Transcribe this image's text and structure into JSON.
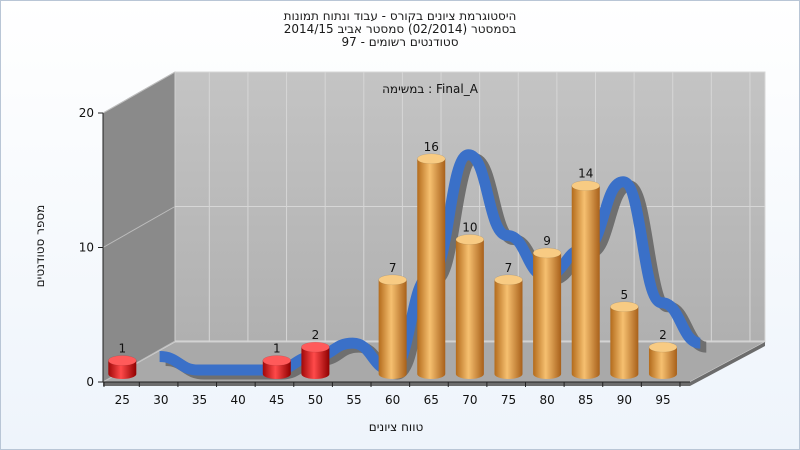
{
  "chart_data": {
    "type": "bar",
    "title_lines": [
      "היסטוגרמת ציונים בקורס - עבוד ונתוח תמונות",
      "בסמסטר  (02/2014)  סמסטר אביב 2014/15",
      "סטודנטים רשומים - 97"
    ],
    "annotation": "במשימה : Final_A",
    "xlabel": "טווח ציונים",
    "ylabel": "מספר סטודנטים",
    "x_ticks": [
      25,
      30,
      35,
      40,
      45,
      50,
      55,
      60,
      65,
      70,
      75,
      80,
      85,
      90,
      95
    ],
    "y_ticks": [
      0,
      10,
      20
    ],
    "ylim": [
      0,
      20
    ],
    "bars": [
      {
        "x": 25,
        "value": 1,
        "color": "red"
      },
      {
        "x": 45,
        "value": 1,
        "color": "red"
      },
      {
        "x": 50,
        "value": 2,
        "color": "red"
      },
      {
        "x": 60,
        "value": 7,
        "color": "orange"
      },
      {
        "x": 65,
        "value": 16,
        "color": "orange"
      },
      {
        "x": 70,
        "value": 10,
        "color": "orange"
      },
      {
        "x": 75,
        "value": 7,
        "color": "orange"
      },
      {
        "x": 80,
        "value": 9,
        "color": "orange"
      },
      {
        "x": 85,
        "value": 14,
        "color": "orange"
      },
      {
        "x": 90,
        "value": 5,
        "color": "orange"
      },
      {
        "x": 95,
        "value": 2,
        "color": "orange"
      }
    ],
    "grid": true,
    "colors": {
      "red": "#e02020",
      "orange": "#e8a040",
      "curve": "#3a70c8"
    }
  }
}
